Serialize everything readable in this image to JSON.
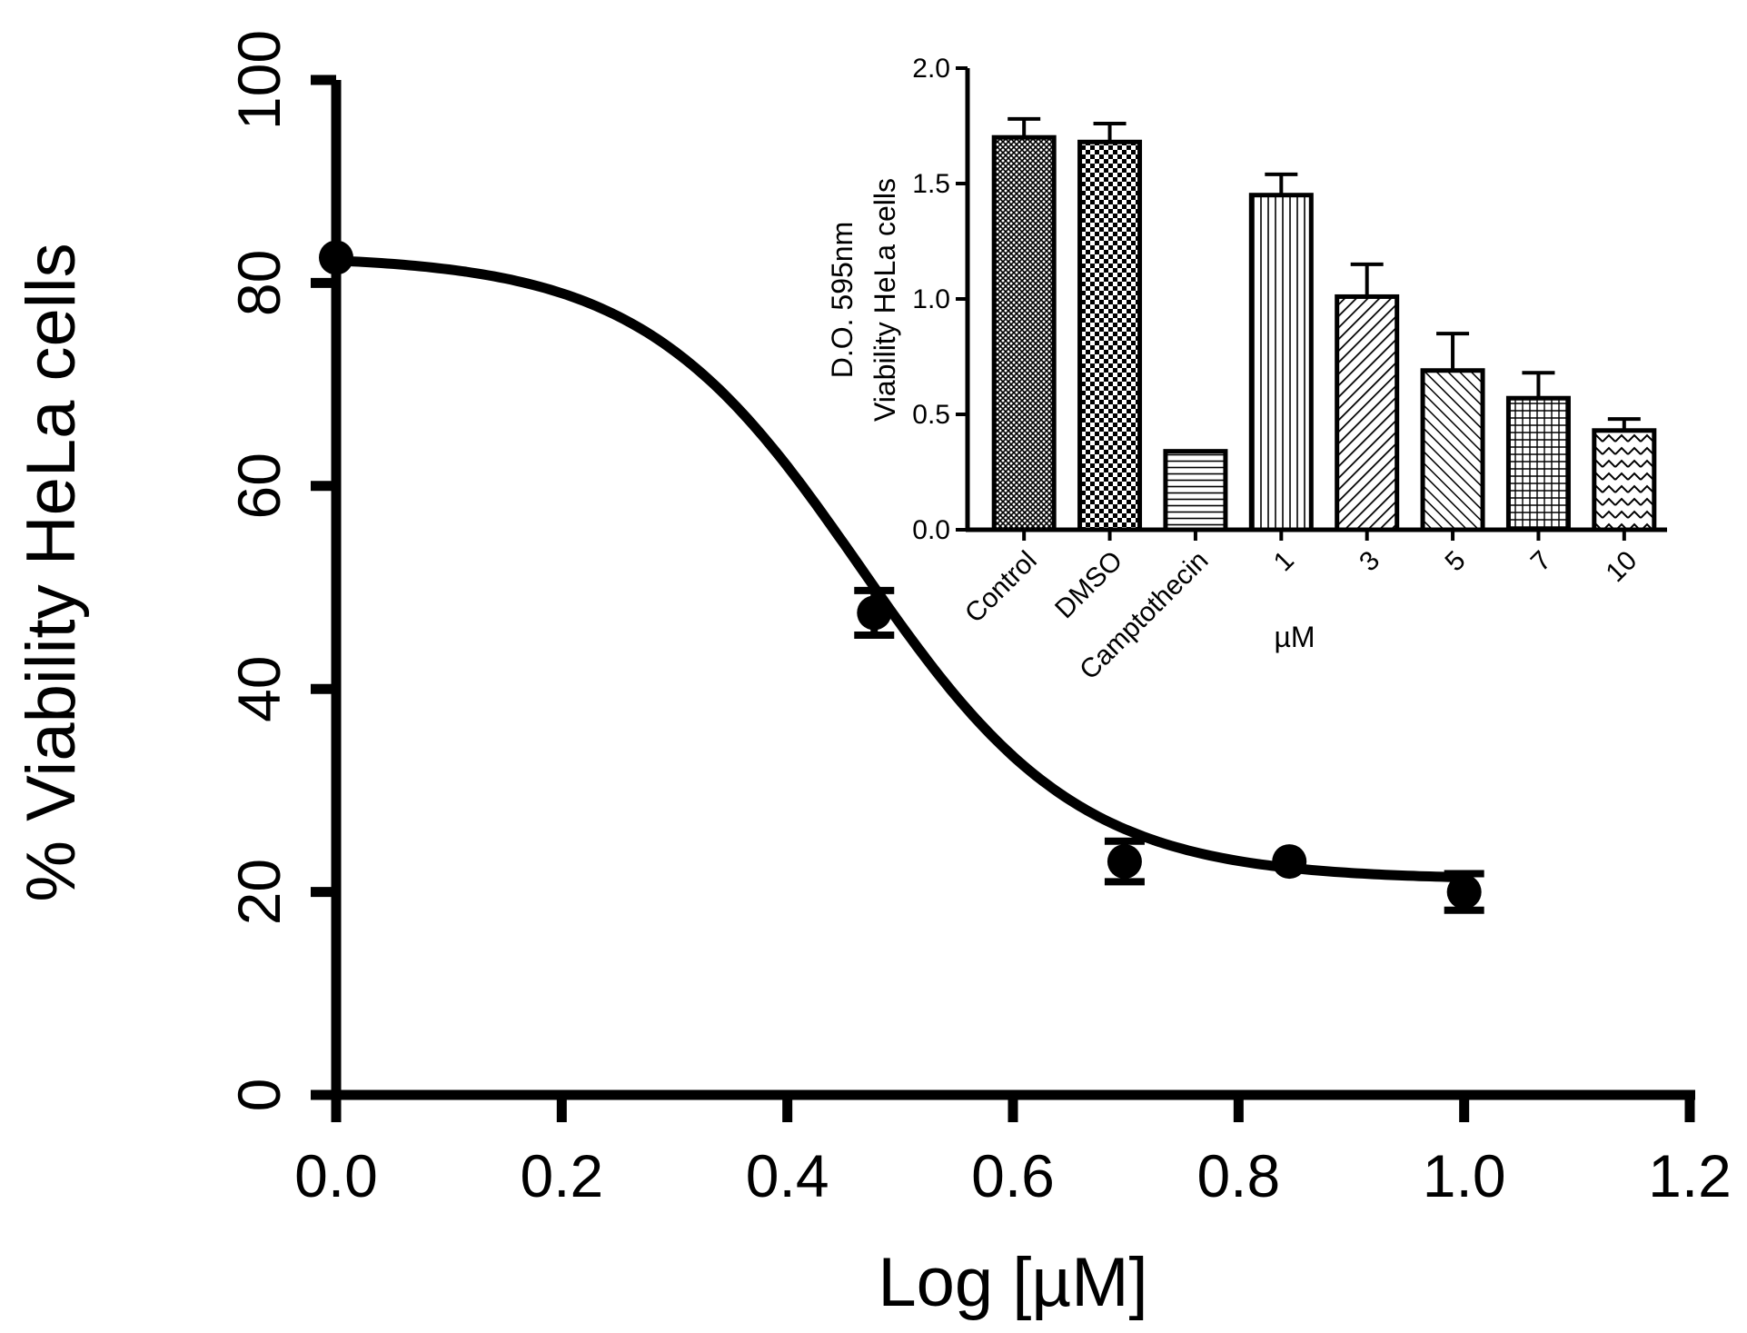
{
  "chart_data": [
    {
      "id": "main",
      "type": "scatter",
      "title": "",
      "xlabel": "Log [µM]",
      "ylabel": "% Viability  HeLa cells",
      "xlim": [
        0,
        1.2
      ],
      "ylim": [
        0,
        100
      ],
      "xticks": [
        "0.0",
        "0.2",
        "0.4",
        "0.6",
        "0.8",
        "1.0",
        "1.2"
      ],
      "yticks": [
        "0",
        "20",
        "40",
        "60",
        "80",
        "100"
      ],
      "xtick_values": [
        0,
        0.2,
        0.4,
        0.6,
        0.8,
        1.0,
        1.2
      ],
      "ytick_values": [
        0,
        20,
        40,
        60,
        80,
        100
      ],
      "series": [
        {
          "name": "% Viability",
          "x": [
            0.0,
            0.477,
            0.699,
            0.845,
            1.0
          ],
          "y": [
            82.5,
            47.5,
            23.0,
            23.0,
            20.0
          ],
          "error": [
            0.0,
            2.2,
            2.0,
            0.0,
            1.8
          ]
        }
      ],
      "fit": {
        "model": "sigmoidal dose-response",
        "top": 82.7,
        "bottom": 21.2,
        "log_ec50": 0.465,
        "hill_slope": -4.5
      }
    },
    {
      "id": "inset",
      "type": "bar",
      "title": "",
      "xlabel": "µM",
      "ylabel_line1": "D.O. 595nm",
      "ylabel_line2": "Viability  HeLa cells",
      "ylim": [
        0,
        2.0
      ],
      "yticks": [
        "0.0",
        "0.5",
        "1.0",
        "1.5",
        "2.0"
      ],
      "ytick_values": [
        0,
        0.5,
        1.0,
        1.5,
        2.0
      ],
      "categories": [
        "Control",
        "DMSO",
        "Camptothecin",
        "1",
        "3",
        "5",
        "7",
        "10"
      ],
      "values": [
        1.7,
        1.68,
        0.34,
        1.45,
        1.01,
        0.69,
        0.57,
        0.43
      ],
      "errors": [
        0.08,
        0.08,
        0.0,
        0.09,
        0.14,
        0.16,
        0.11,
        0.05
      ],
      "patterns": [
        "dense-crosshatch",
        "checker",
        "horizontal",
        "vertical",
        "diag-up",
        "diag-down",
        "grid",
        "zigzag"
      ]
    }
  ]
}
